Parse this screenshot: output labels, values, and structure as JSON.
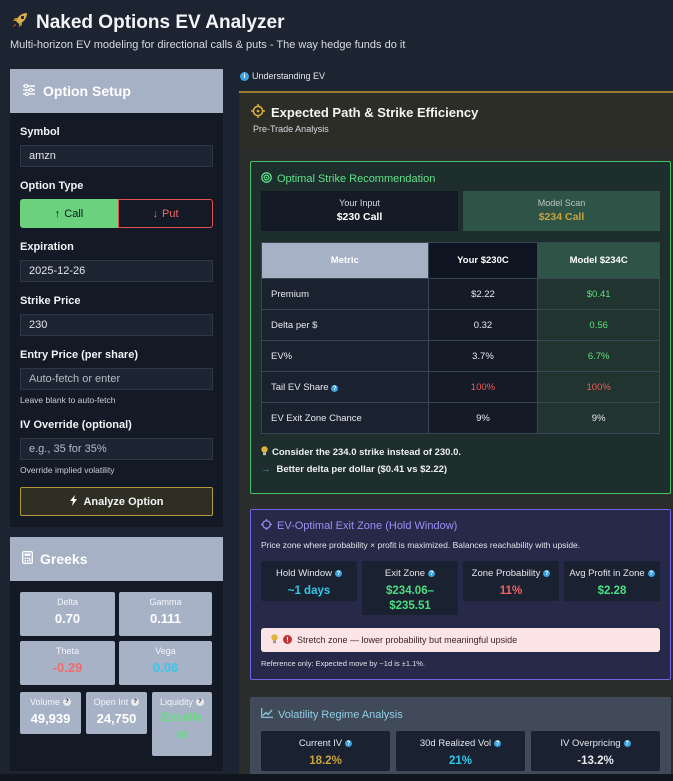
{
  "header": {
    "title": "Naked Options EV Analyzer",
    "subtitle": "Multi-horizon EV modeling for directional calls & puts - The way hedge funds do it"
  },
  "setup": {
    "title": "Option Setup",
    "symbol_label": "Symbol",
    "symbol_value": "amzn",
    "type_label": "Option Type",
    "call_label": "Call",
    "put_label": "Put",
    "expiration_label": "Expiration",
    "expiration_value": "2025-12-26",
    "strike_label": "Strike Price",
    "strike_value": "230",
    "entry_label": "Entry Price (per share)",
    "entry_placeholder": "Auto-fetch or enter",
    "entry_hint": "Leave blank to auto-fetch",
    "iv_label": "IV Override (optional)",
    "iv_placeholder": "e.g., 35 for 35%",
    "iv_hint": "Override implied volatility",
    "analyze_label": "Analyze Option"
  },
  "greeks": {
    "title": "Greeks",
    "delta_label": "Delta",
    "delta_value": "0.70",
    "gamma_label": "Gamma",
    "gamma_value": "0.111",
    "theta_label": "Theta",
    "theta_value": "-0.29",
    "vega_label": "Vega",
    "vega_value": "0.06",
    "volume_label": "Volume",
    "volume_value": "49,939",
    "oi_label": "Open Int",
    "oi_value": "24,750",
    "liq_label": "Liquidity",
    "liq_value": "Excelle nt"
  },
  "understanding_label": "Understanding EV",
  "path": {
    "title": "Expected Path & Strike Efficiency",
    "subtitle": "Pre-Trade Analysis"
  },
  "optimal": {
    "title": "Optimal Strike Recommendation",
    "your_input_label": "Your Input",
    "your_input_value": "$230 Call",
    "model_scan_label": "Model Scan",
    "model_scan_value": "$234 Call",
    "headers": [
      "Metric",
      "Your $230C",
      "Model $234C"
    ],
    "rows": [
      {
        "metric": "Premium",
        "yours": "$2.22",
        "model": "$0.41"
      },
      {
        "metric": "Delta per $",
        "yours": "0.32",
        "model": "0.56"
      },
      {
        "metric": "EV%",
        "yours": "3.7%",
        "model": "6.7%"
      },
      {
        "metric": "Tail EV Share",
        "yours": "100%",
        "model": "100%"
      },
      {
        "metric": "EV Exit Zone Chance",
        "yours": "9%",
        "model": "9%"
      }
    ],
    "tip": "Consider the 234.0 strike instead of 230.0.",
    "reason": "Better delta per dollar ($0.41 vs $2.22)"
  },
  "exit": {
    "title": "EV-Optimal Exit Zone (Hold Window)",
    "desc": "Price zone where probability × profit is maximized. Balances reachability with upside.",
    "hold_label": "Hold Window",
    "hold_value": "~1 days",
    "zone_label": "Exit Zone",
    "zone_value_1": "$234.06–",
    "zone_value_2": "$235.51",
    "prob_label": "Zone Probability",
    "prob_value": "11%",
    "profit_label": "Avg Profit in Zone",
    "profit_value": "$2.28",
    "stretch": "Stretch zone — lower probability but meaningful upside",
    "reference": "Reference only: Expected move by ~1d is ±1.1%."
  },
  "vol": {
    "title": "Volatility Regime Analysis",
    "civ_label": "Current IV",
    "civ_value": "18.2%",
    "rv_label": "30d Realized Vol",
    "rv_value": "21%",
    "over_label": "IV Overpricing",
    "over_value": "-13.2%"
  },
  "colors": {
    "green": "#4ade80",
    "red": "#f05a5a",
    "teal": "#2ec8ee",
    "gold": "#c9a23a",
    "purple": "#7c6cf0"
  }
}
